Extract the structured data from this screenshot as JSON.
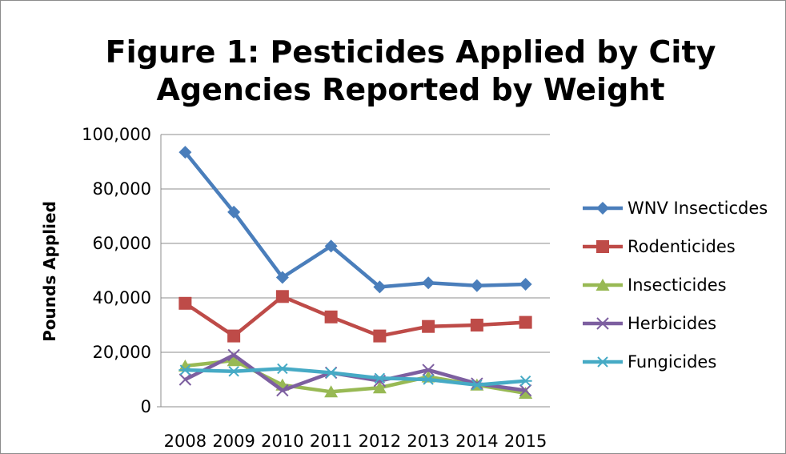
{
  "chart_data": {
    "type": "line",
    "title_lines": [
      "Figure 1: Pesticides Applied by City",
      "Agencies Reported by Weight"
    ],
    "xlabel": "",
    "ylabel": "Pounds Applied",
    "ylim": [
      0,
      100000
    ],
    "y_ticks": [
      "0",
      "20,000",
      "40,000",
      "60,000",
      "80,000",
      "100,000"
    ],
    "y_tick_values": [
      0,
      20000,
      40000,
      60000,
      80000,
      100000
    ],
    "categories": [
      "2008",
      "2009",
      "2010",
      "2011",
      "2012",
      "2013",
      "2014",
      "2015"
    ],
    "grid": true,
    "legend_position": "right",
    "series": [
      {
        "name": "WNV Insecticdes",
        "color": "#4a7ebb",
        "marker": "diamond",
        "values": [
          93500,
          71500,
          47500,
          59000,
          44000,
          45500,
          44500,
          45000
        ]
      },
      {
        "name": "Rodenticides",
        "color": "#be4b48",
        "marker": "square",
        "values": [
          38000,
          26000,
          40500,
          33000,
          26000,
          29500,
          30000,
          31000
        ]
      },
      {
        "name": "Insecticides",
        "color": "#98b954",
        "marker": "triangle",
        "values": [
          15000,
          17000,
          8000,
          5500,
          7000,
          11000,
          8000,
          5000
        ]
      },
      {
        "name": "Herbicides",
        "color": "#7d5fa0",
        "marker": "x",
        "values": [
          10000,
          19000,
          6000,
          12500,
          9500,
          13500,
          8500,
          6000
        ]
      },
      {
        "name": "Fungicides",
        "color": "#46aac5",
        "marker": "star",
        "values": [
          13500,
          13000,
          14000,
          12500,
          10500,
          10000,
          8000,
          9500
        ]
      }
    ]
  }
}
